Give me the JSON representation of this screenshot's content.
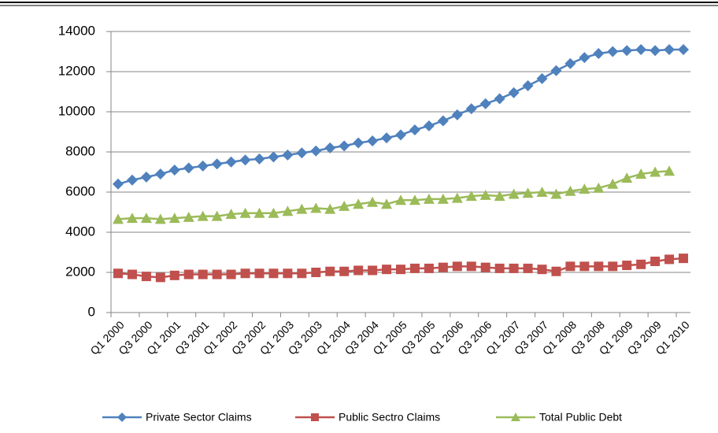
{
  "chart_data": {
    "type": "line",
    "categories": [
      "Q1 2000",
      null,
      "Q3 2000",
      null,
      "Q1 2001",
      null,
      "Q3 2001",
      null,
      "Q1 2002",
      null,
      "Q3 2002",
      null,
      "Q1 2003",
      null,
      "Q3 2003",
      null,
      "Q1 2004",
      null,
      "Q3 2004",
      null,
      "Q1 2005",
      null,
      "Q3 2005",
      null,
      "Q1 2006",
      null,
      "Q3 2006",
      null,
      "Q1 2007",
      null,
      "Q3 2007",
      null,
      "Q1 2008",
      null,
      "Q3 2008",
      null,
      "Q1 2009",
      null,
      "Q3 2009",
      null,
      "Q1 2010"
    ],
    "series": [
      {
        "name": "Private Sector Claims",
        "color": "#4f81bd",
        "marker": "diamond",
        "values": [
          6400,
          6600,
          6750,
          6900,
          7100,
          7200,
          7300,
          7400,
          7500,
          7600,
          7650,
          7750,
          7850,
          7950,
          8050,
          8200,
          8300,
          8450,
          8550,
          8700,
          8850,
          9100,
          9300,
          9550,
          9850,
          10150,
          10400,
          10650,
          10950,
          11300,
          11650,
          12050,
          12400,
          12700,
          12900,
          13000,
          13050,
          13100,
          13050,
          13100,
          13100
        ]
      },
      {
        "name": "Public Sectro Claims",
        "color": "#c0504d",
        "marker": "square",
        "values": [
          1950,
          1900,
          1800,
          1750,
          1850,
          1900,
          1900,
          1900,
          1900,
          1950,
          1950,
          1950,
          1950,
          1950,
          2000,
          2050,
          2050,
          2100,
          2100,
          2150,
          2150,
          2200,
          2200,
          2250,
          2300,
          2300,
          2250,
          2200,
          2200,
          2200,
          2150,
          2050,
          2300,
          2300,
          2300,
          2300,
          2350,
          2400,
          2550,
          2650,
          2700
        ]
      },
      {
        "name": "Total Public Debt",
        "color": "#9bbb59",
        "marker": "triangle",
        "values": [
          4650,
          4700,
          4700,
          4650,
          4700,
          4750,
          4800,
          4800,
          4900,
          4950,
          4950,
          4950,
          5050,
          5150,
          5200,
          5150,
          5300,
          5400,
          5500,
          5400,
          5600,
          5600,
          5650,
          5650,
          5700,
          5800,
          5850,
          5800,
          5900,
          5950,
          6000,
          5900,
          6050,
          6150,
          6200,
          6400,
          6700,
          6900,
          7000,
          7050,
          null
        ]
      }
    ],
    "ylim": [
      0,
      14000
    ],
    "yticks": [
      0,
      2000,
      4000,
      6000,
      8000,
      10000,
      12000,
      14000
    ],
    "grid": true,
    "legend": "bottom"
  }
}
